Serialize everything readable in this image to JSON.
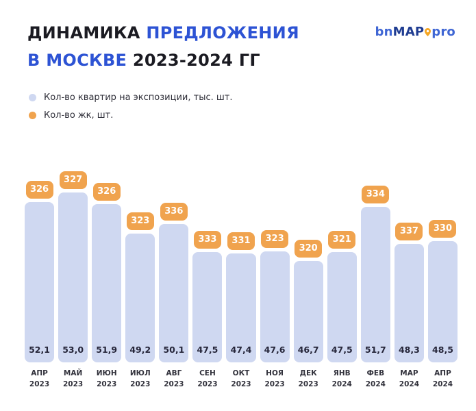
{
  "header": {
    "title": {
      "line1": {
        "black": "ДИНАМИКА",
        "blue": "ПРЕДЛОЖЕНИЯ"
      },
      "line2": {
        "blue": "В МОСКВЕ",
        "black": "2023-2024 ГГ"
      }
    },
    "logo": {
      "bn": "bn",
      "map": "MAP",
      "pro": "pro",
      "pin_color": "#f5a623"
    }
  },
  "legend": {
    "items": [
      {
        "label": "Кол-во квартир на экспозиции, тыс. шт.",
        "color": "#cfd8f1"
      },
      {
        "label": "Кол-во жк, шт.",
        "color": "#f0a34e"
      }
    ]
  },
  "colors": {
    "bar_fill": "#cfd8f1",
    "badge_fill": "#f0a34e",
    "badge_text": "#ffffff",
    "title_accent": "#2d53d4",
    "title_dark": "#1b1b22",
    "value_text": "#26263a",
    "axis_text": "#32323c"
  },
  "chart_data": {
    "type": "bar",
    "title": "ДИНАМИКА ПРЕДЛОЖЕНИЯ В МОСКВЕ 2023-2024 ГГ",
    "categories": [
      "АПР 2023",
      "МАЙ 2023",
      "ИЮН 2023",
      "ИЮЛ 2023",
      "АВГ 2023",
      "СЕН 2023",
      "ОКТ 2023",
      "НОЯ 2023",
      "ДЕК 2023",
      "ЯНВ 2024",
      "ФЕВ 2024",
      "МАР 2024",
      "АПР 2024"
    ],
    "series": [
      {
        "name": "Кол-во квартир на экспозиции, тыс. шт.",
        "role": "bar",
        "values": [
          52.1,
          53.0,
          51.9,
          49.2,
          50.1,
          47.5,
          47.4,
          47.6,
          46.7,
          47.5,
          51.7,
          48.3,
          48.5
        ],
        "value_format": "comma-decimal-1",
        "color": "#cfd8f1"
      },
      {
        "name": "Кол-во жк, шт.",
        "role": "badge-above-bar",
        "values": [
          326,
          327,
          326,
          323,
          336,
          333,
          331,
          323,
          320,
          321,
          334,
          337,
          330
        ],
        "color": "#f0a34e"
      }
    ],
    "xlabel": "",
    "ylabel": "",
    "y_axis_visible": false,
    "grid": false,
    "legend_position": "top-left",
    "value_labels": "inside-bar-bottom"
  }
}
